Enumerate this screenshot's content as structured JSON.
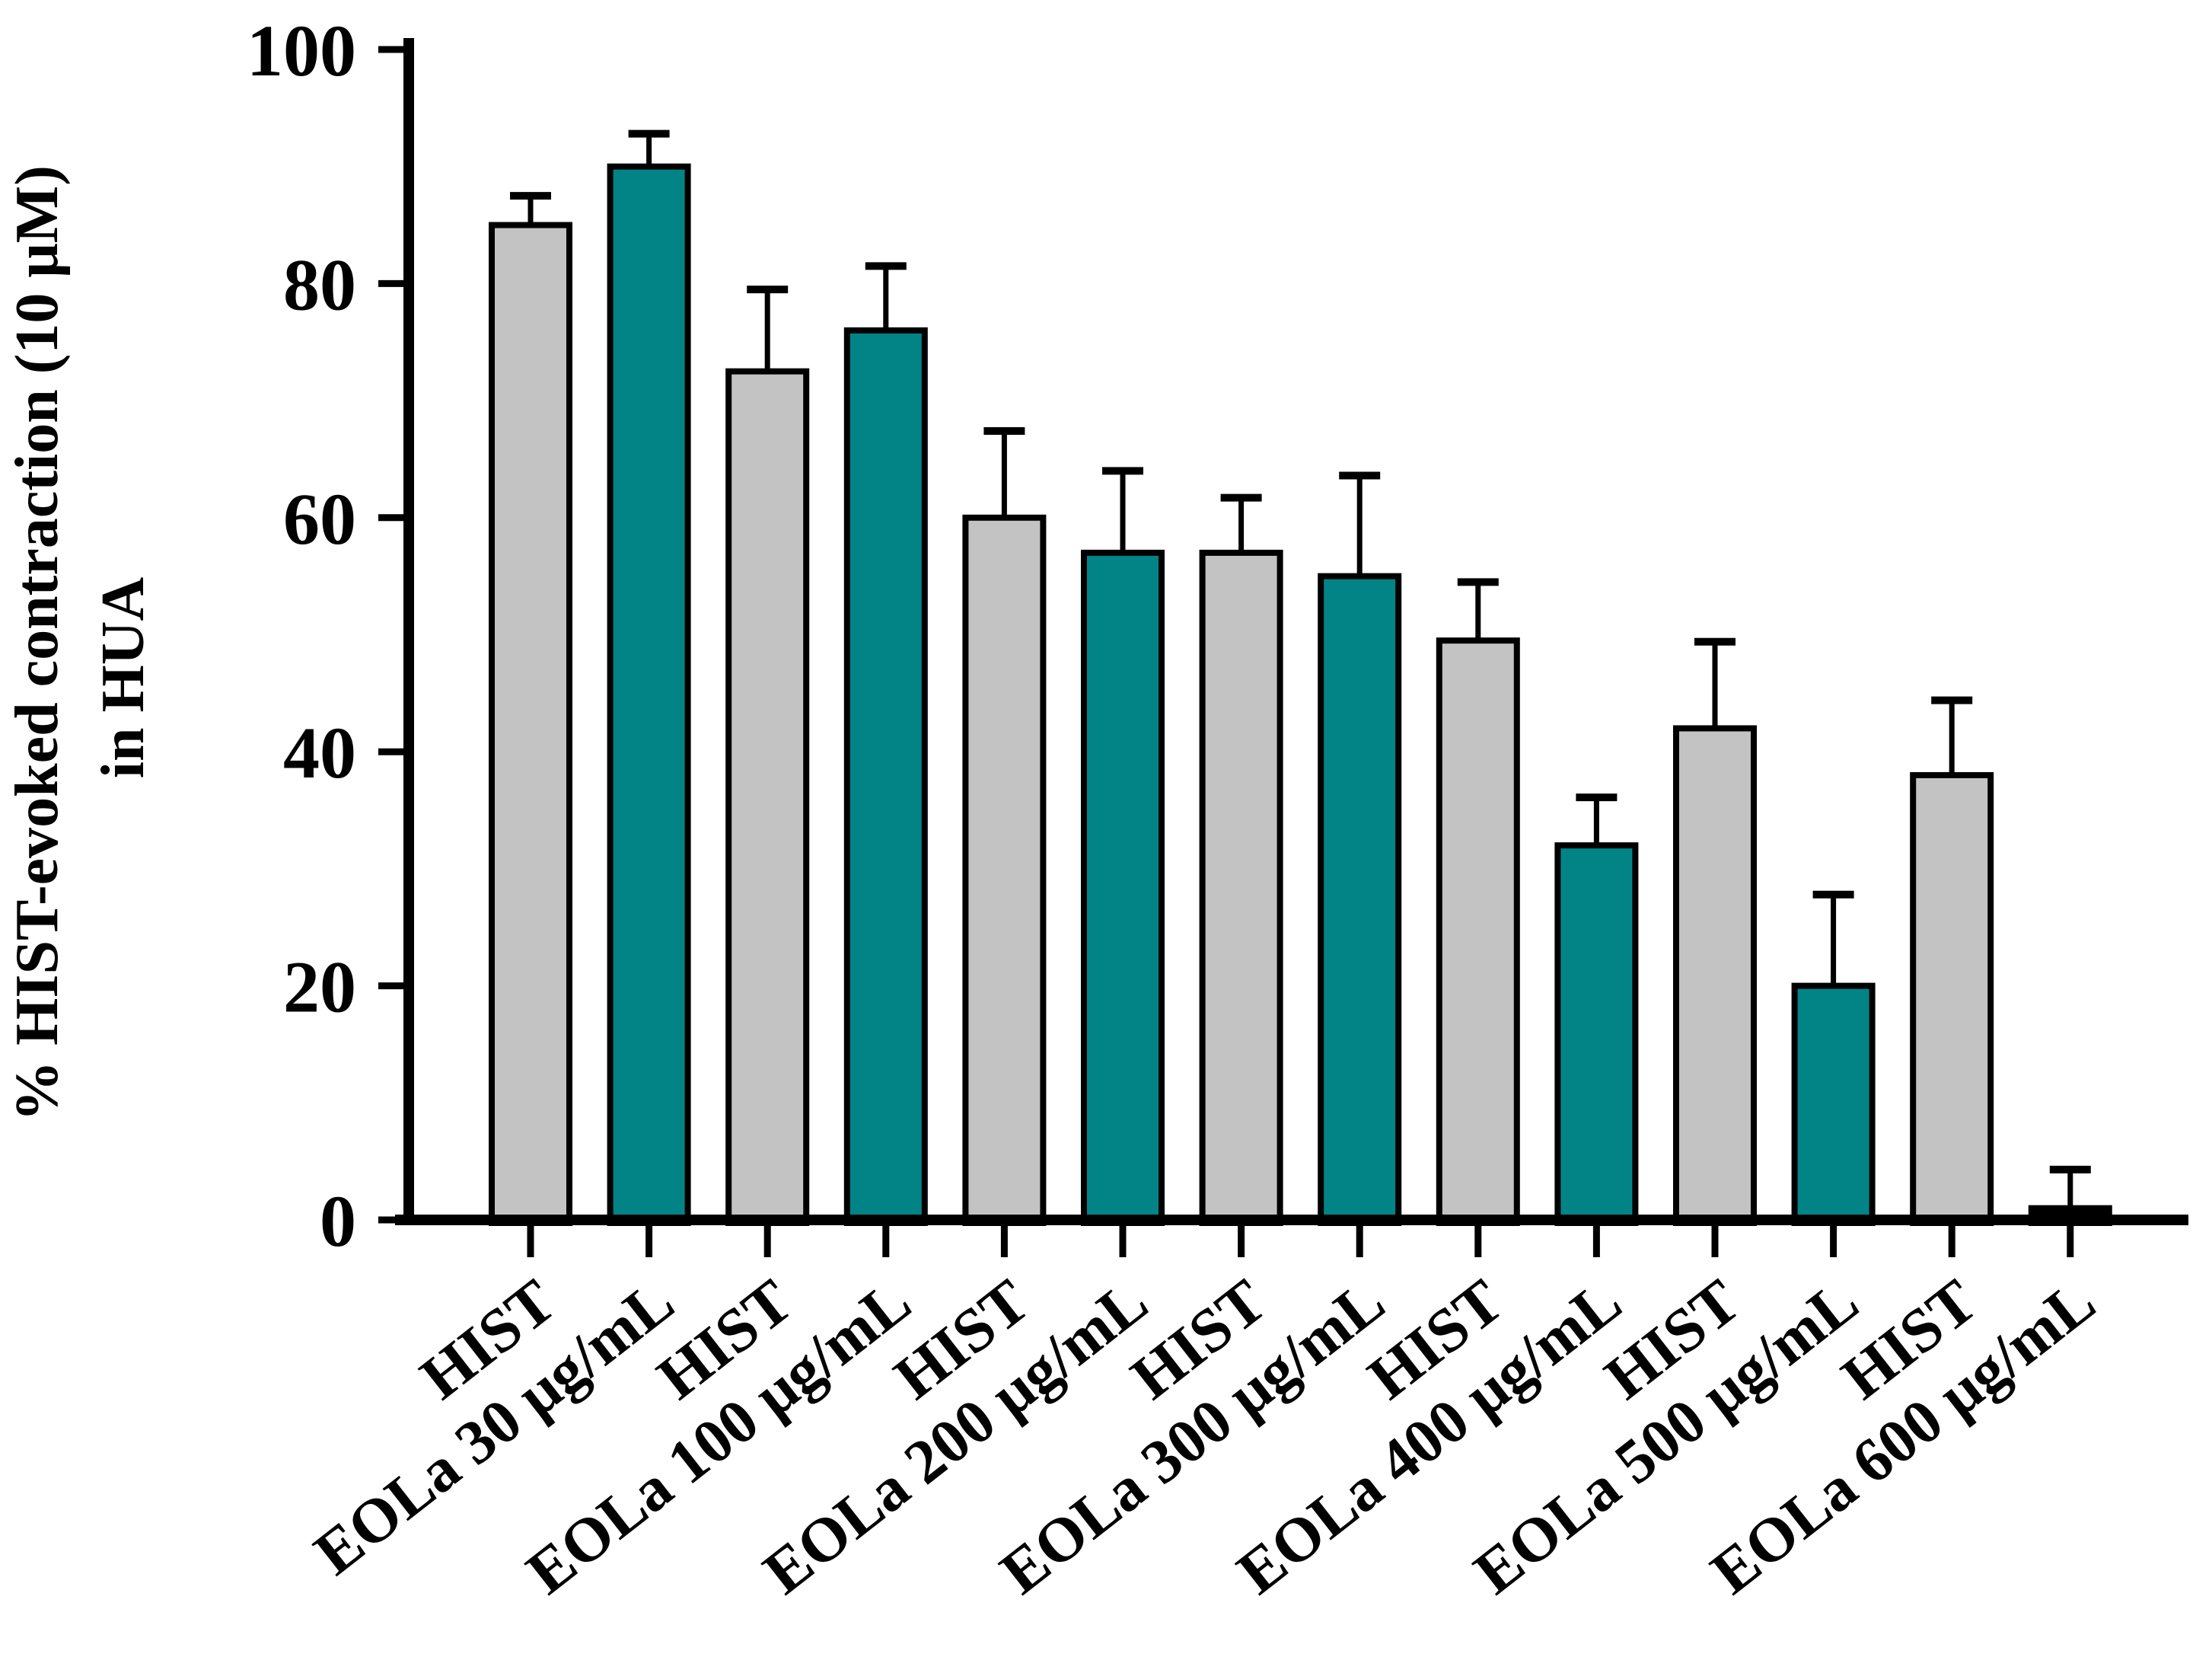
{
  "figure": {
    "background": "#ffffff",
    "description": "Bar chart of percent histamine-evoked contraction in HUA for alternating HIST and EOLa doses"
  },
  "chart_data": {
    "type": "bar",
    "title": "",
    "xlabel": "",
    "ylabel_line1": "% HIST-evoked contraction (10 μM)",
    "ylabel_line2": "in HUA",
    "ylim": [
      0,
      100
    ],
    "yticks": [
      0,
      20,
      40,
      60,
      80,
      100
    ],
    "grid": false,
    "legend_position": "none",
    "error_bars": "plus-direction with caps",
    "categories": [
      "HIST",
      "EOLa 30 μg/mL",
      "HIST",
      "EOLa 100 μg/mL",
      "HIST",
      "EOLa 200 μg/mL",
      "HIST",
      "EOLa 300 μg/mL",
      "HIST",
      "EOLa 400 μg/mL",
      "HIST",
      "EOLa 500 μg/mL",
      "HIST",
      "EOLa 600 μg/mL"
    ],
    "values": [
      85,
      90,
      72.5,
      76,
      60,
      57,
      57,
      55,
      49.5,
      32,
      42,
      20,
      38,
      1
    ],
    "errors_plus": [
      2.5,
      2.8,
      7,
      5.5,
      7.4,
      7,
      4.7,
      8.6,
      5,
      4.1,
      7.4,
      7.8,
      6.4,
      3.3
    ],
    "bar_colors": [
      "#c3c3c3",
      "#028487",
      "#c3c3c3",
      "#028487",
      "#c3c3c3",
      "#028487",
      "#c3c3c3",
      "#028487",
      "#c3c3c3",
      "#028487",
      "#c3c3c3",
      "#028487",
      "#c3c3c3",
      "#000000"
    ],
    "colors": {
      "hist_bar": "#c3c3c3",
      "eola_bar": "#028487",
      "final_bar": "#000000",
      "axis": "#000000",
      "text": "#000000",
      "bar_outline": "#000000"
    }
  }
}
